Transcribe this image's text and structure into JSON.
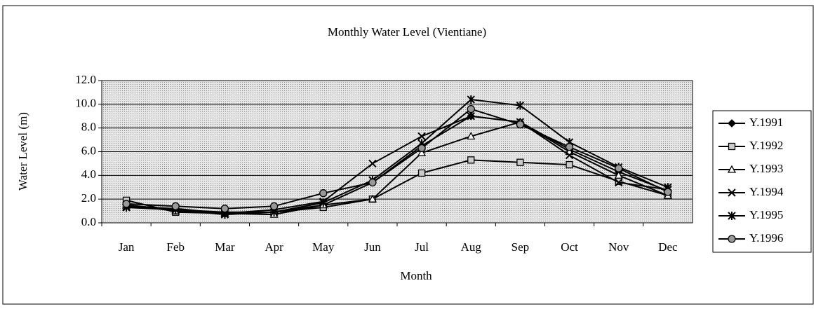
{
  "chart_data": {
    "type": "line",
    "title": "Monthly Water Level (Vientiane)",
    "x_label": "Month",
    "y_label": "Water Level (m)",
    "categories": [
      "Jan",
      "Feb",
      "Mar",
      "Apr",
      "May",
      "Jun",
      "Jul",
      "Aug",
      "Sep",
      "Oct",
      "Nov",
      "Dec"
    ],
    "ylim": [
      0,
      12
    ],
    "yticks": [
      {
        "value": 0,
        "label": "0.0"
      },
      {
        "value": 2,
        "label": "2.0"
      },
      {
        "value": 4,
        "label": "4.0"
      },
      {
        "value": 6,
        "label": "6.0"
      },
      {
        "value": 8,
        "label": "8.0"
      },
      {
        "value": 10,
        "label": "10.0"
      },
      {
        "value": 12,
        "label": "12.0"
      }
    ],
    "grid": true,
    "legend": "right",
    "series": [
      {
        "name": "Y.1991",
        "color": "#000000",
        "marker": "diamond",
        "values": [
          1.5,
          1.1,
          0.9,
          0.9,
          1.5,
          3.4,
          6.5,
          9.0,
          8.5,
          6.2,
          4.3,
          2.7
        ]
      },
      {
        "name": "Y.1992",
        "color": "#000000",
        "marker": "square",
        "values": [
          1.9,
          0.9,
          0.8,
          0.9,
          1.3,
          2.0,
          4.2,
          5.3,
          5.1,
          4.9,
          3.5,
          2.3
        ]
      },
      {
        "name": "Y.1993",
        "color": "#000000",
        "marker": "triangle",
        "values": [
          1.5,
          1.0,
          0.8,
          0.7,
          1.5,
          2.0,
          5.9,
          7.3,
          8.5,
          6.0,
          4.0,
          2.3
        ]
      },
      {
        "name": "Y.1994",
        "color": "#000000",
        "marker": "x",
        "values": [
          1.4,
          1.2,
          0.8,
          1.1,
          1.8,
          5.0,
          7.3,
          9.0,
          8.5,
          5.7,
          3.4,
          2.8
        ]
      },
      {
        "name": "Y.1995",
        "color": "#000000",
        "marker": "asterisk",
        "values": [
          1.3,
          1.1,
          0.7,
          0.9,
          1.7,
          3.6,
          6.7,
          10.4,
          9.9,
          6.8,
          4.7,
          3.0
        ]
      },
      {
        "name": "Y.1996",
        "color": "#000000",
        "marker": "circle",
        "values": [
          1.6,
          1.4,
          1.2,
          1.4,
          2.5,
          3.4,
          6.3,
          9.6,
          8.3,
          6.4,
          4.6,
          2.6
        ]
      }
    ]
  }
}
